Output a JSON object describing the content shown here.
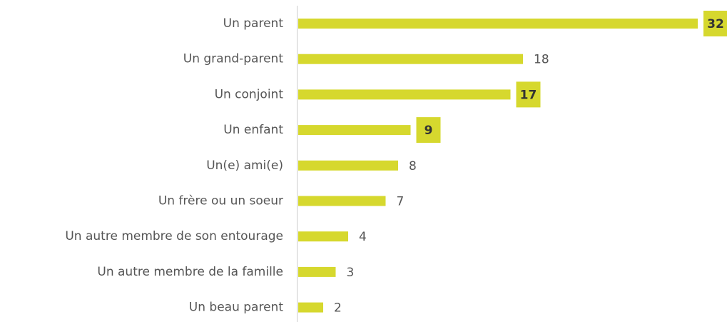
{
  "chart_data": {
    "type": "bar",
    "orientation": "horizontal",
    "categories": [
      "Un parent",
      "Un grand-parent",
      "Un conjoint",
      "Un enfant",
      "Un(e) ami(e)",
      "Un frère ou un soeur",
      "Un autre membre de son entourage",
      "Un autre membre de la famille",
      "Un beau parent"
    ],
    "values": [
      32,
      18,
      17,
      9,
      8,
      7,
      4,
      3,
      2
    ],
    "highlight": [
      true,
      false,
      true,
      true,
      false,
      false,
      false,
      false,
      false
    ],
    "color": "#d6d82e"
  }
}
